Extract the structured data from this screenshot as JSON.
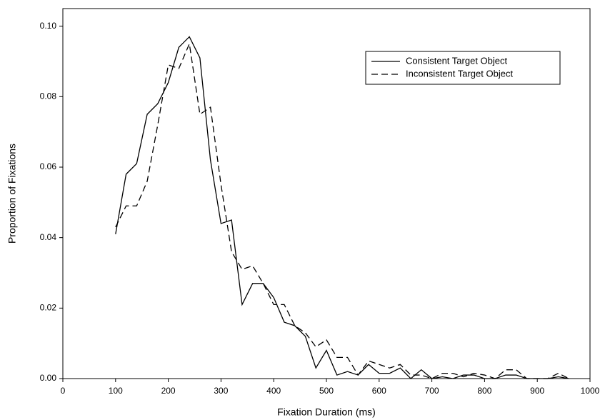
{
  "chart_data": {
    "type": "line",
    "x_label": "Fixation Duration (ms)",
    "y_label": "Proportion of Fixations",
    "x": [
      100,
      120,
      140,
      160,
      180,
      200,
      220,
      240,
      260,
      280,
      300,
      320,
      340,
      360,
      380,
      400,
      420,
      440,
      460,
      480,
      500,
      520,
      540,
      560,
      580,
      600,
      620,
      640,
      660,
      680,
      700,
      720,
      740,
      760,
      780,
      800,
      820,
      840,
      860,
      880,
      900,
      920,
      940,
      960
    ],
    "series": [
      {
        "name": "Consistent Target Object",
        "color": "#000000",
        "line_style": "solid",
        "values": [
          0.041,
          0.058,
          0.061,
          0.075,
          0.078,
          0.084,
          0.094,
          0.097,
          0.091,
          0.062,
          0.044,
          0.045,
          0.021,
          0.027,
          0.027,
          0.023,
          0.016,
          0.015,
          0.012,
          0.003,
          0.008,
          0.001,
          0.002,
          0.001,
          0.004,
          0.0015,
          0.0015,
          0.003,
          0,
          0.0025,
          0,
          0.0005,
          0,
          0.001,
          0.001,
          0,
          0,
          0.001,
          0.001,
          0,
          0,
          0,
          0.0005,
          0
        ]
      },
      {
        "name": "Inconsistent Target Object",
        "color": "#000000",
        "line_style": "dashed",
        "values": [
          0.043,
          0.049,
          0.049,
          0.056,
          0.072,
          0.089,
          0.088,
          0.095,
          0.075,
          0.077,
          0.055,
          0.036,
          0.031,
          0.032,
          0.027,
          0.021,
          0.021,
          0.015,
          0.013,
          0.009,
          0.011,
          0.006,
          0.006,
          0.001,
          0.005,
          0.004,
          0.003,
          0.004,
          0.001,
          0.001,
          0,
          0.0015,
          0.0015,
          0.0005,
          0.0015,
          0.001,
          0,
          0.0025,
          0.0025,
          0,
          0,
          0,
          0.0015,
          0
        ]
      }
    ],
    "xlim": [
      0,
      1000
    ],
    "xticks": [
      0,
      100,
      200,
      300,
      400,
      500,
      600,
      700,
      800,
      900,
      1000
    ],
    "ylim": [
      0,
      0.105
    ],
    "yticks": [
      {
        "value": 0,
        "label": "0.00"
      },
      {
        "value": 0.02,
        "label": "0.02"
      },
      {
        "value": 0.04,
        "label": "0.04"
      },
      {
        "value": 0.06,
        "label": "0.06"
      },
      {
        "value": 0.08,
        "label": "0.08"
      },
      {
        "value": 0.1,
        "label": "0.10"
      }
    ],
    "legend": "top-right"
  }
}
